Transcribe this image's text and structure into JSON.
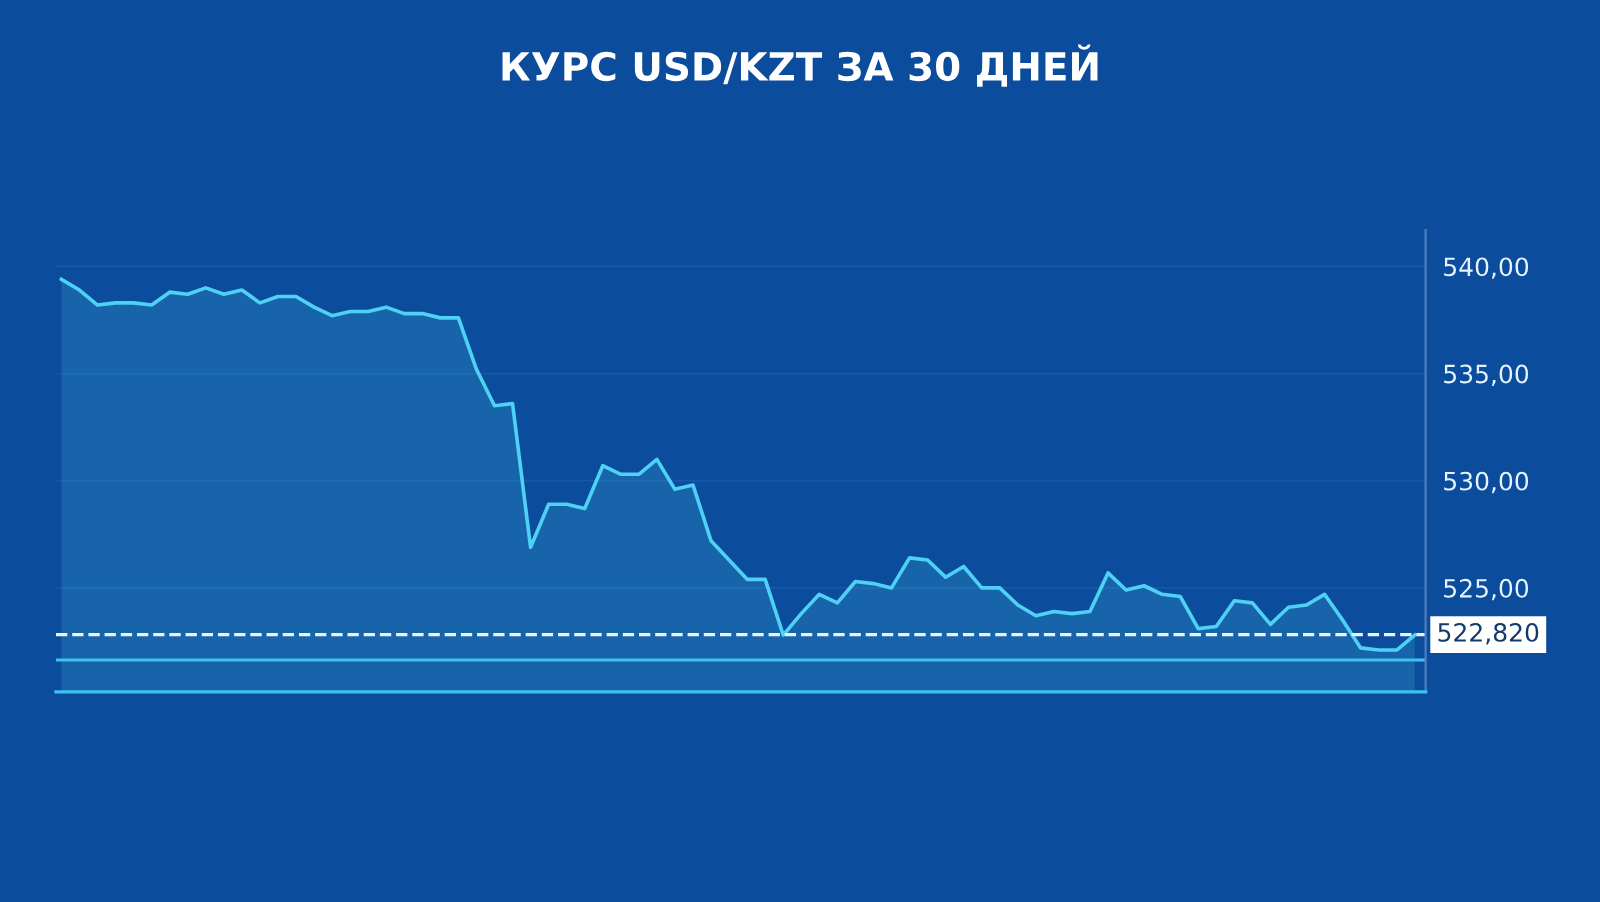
{
  "chart_data": {
    "type": "area",
    "title": "КУРС USD/KZT ЗА 30 ДНЕЙ",
    "categories": [
      null,
      null,
      null,
      null,
      null,
      null,
      null,
      null,
      null,
      null,
      null,
      null,
      null,
      null,
      null,
      null,
      null,
      null,
      null,
      null,
      null,
      null,
      null,
      null,
      null,
      null,
      null,
      null,
      null,
      null,
      null,
      null,
      null,
      null,
      null,
      null,
      null,
      null,
      null,
      null,
      null,
      null,
      null,
      null,
      null,
      null,
      null,
      null,
      null,
      null,
      null,
      null,
      null,
      null,
      null,
      null,
      null,
      null,
      null,
      null,
      null,
      null,
      null,
      null,
      null,
      null,
      null,
      null,
      null,
      null,
      null,
      null,
      null,
      null,
      null,
      null
    ],
    "series": [
      {
        "color": "#4fd0f5",
        "values": [
          539.4,
          538.9,
          538.2,
          538.3,
          538.3,
          538.2,
          538.8,
          538.7,
          539.0,
          538.7,
          538.9,
          538.3,
          538.6,
          538.6,
          538.1,
          537.7,
          537.9,
          537.9,
          538.1,
          537.8,
          537.8,
          537.6,
          537.6,
          535.2,
          533.5,
          533.6,
          526.9,
          528.9,
          528.9,
          528.7,
          530.7,
          530.3,
          530.3,
          531.0,
          529.6,
          529.8,
          527.2,
          526.3,
          525.4,
          525.4,
          522.8,
          523.8,
          524.7,
          524.3,
          525.3,
          525.2,
          525.0,
          526.4,
          526.3,
          525.5,
          526.0,
          525.0,
          525.0,
          524.2,
          523.7,
          523.9,
          523.8,
          523.9,
          525.7,
          524.9,
          525.1,
          524.7,
          524.6,
          523.1,
          523.2,
          524.4,
          524.3,
          523.3,
          524.1,
          524.2,
          524.7,
          523.5,
          522.2,
          522.1,
          522.1,
          522.8
        ]
      }
    ],
    "ylim": [
      520.15,
      541.7
    ],
    "yticks": [
      {
        "value": 525,
        "label": "525,00"
      },
      {
        "value": 530,
        "label": "530,00"
      },
      {
        "value": 535,
        "label": "535,00"
      },
      {
        "value": 540,
        "label": "540,00"
      }
    ],
    "tick_labels": "y",
    "grid": "y",
    "ref_lines": [
      {
        "axis": "y",
        "value": 522.82,
        "label": "522,820",
        "line_style": "dashed",
        "color": "#e6f4ff"
      },
      {
        "axis": "y",
        "value": 521.64,
        "color": "#3fc2f0",
        "line_style": "solid"
      }
    ]
  }
}
